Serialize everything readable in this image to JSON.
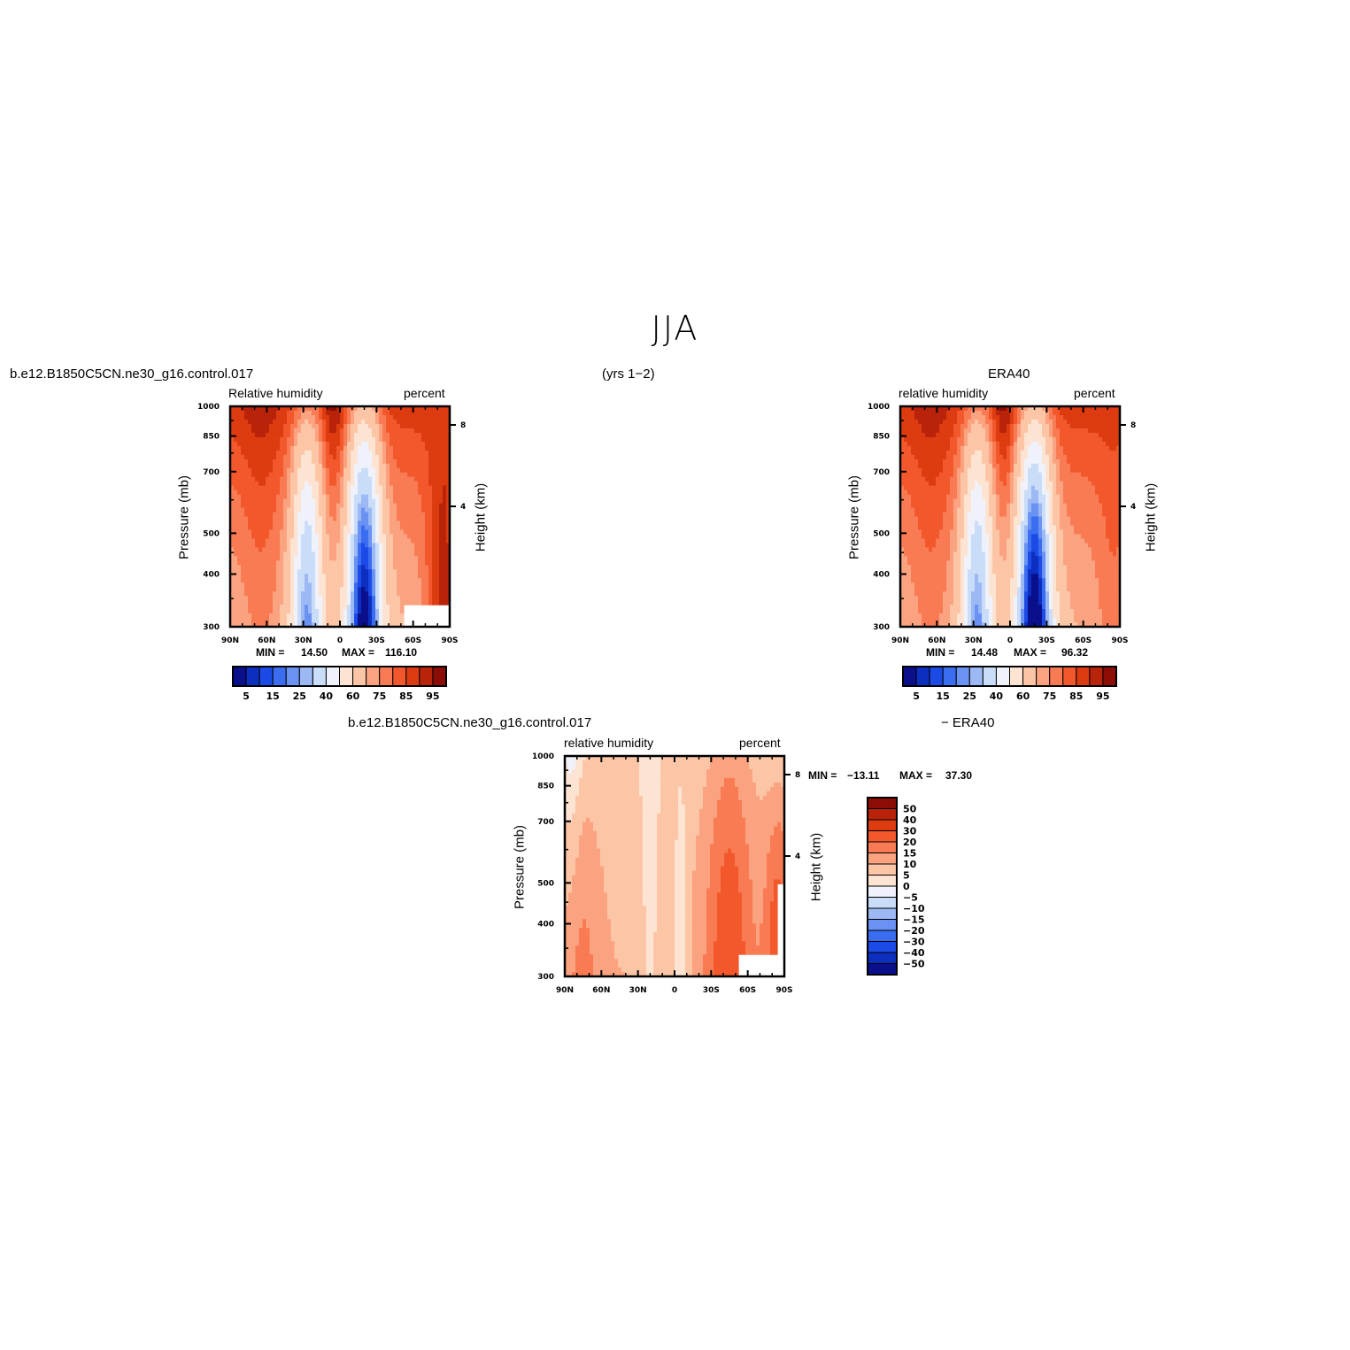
{
  "figure": {
    "title": "JJA",
    "period": "(yrs 1−2)"
  },
  "panels": {
    "model": {
      "case": "b.e12.B1850C5CN.ne30_g16.control.017",
      "left_string": "Relative  humidity",
      "right_string": "percent",
      "min_label": "MIN =",
      "min_value": "14.50",
      "max_label": "MAX =",
      "max_value": "116.10"
    },
    "obs": {
      "case": "ERA40",
      "left_string": "relative  humidity",
      "right_string": "percent",
      "min_label": "MIN =",
      "min_value": "14.48",
      "max_label": "MAX =",
      "max_value": "96.32"
    },
    "diff": {
      "case": "b.e12.B1850C5CN.ne30_g16.control.017",
      "case_suffix": "− ERA40",
      "left_string": "relative  humidity",
      "right_string": "percent",
      "min_label": "MIN =",
      "min_value": "−13.11",
      "max_label": "MAX =",
      "max_value": "37.30"
    }
  },
  "axes": {
    "y_left_title": "Pressure  (mb)",
    "y_right_title": "Height  (km)",
    "pressure_ticks": [
      "300",
      "400",
      "500",
      "700",
      "850",
      "1000"
    ],
    "height_ticks": [
      "8",
      "4"
    ],
    "lat_ticks": [
      "90N",
      "60N",
      "30N",
      "0",
      "30S",
      "60S",
      "90S"
    ]
  },
  "colorbars": {
    "absolute_labels": [
      "5",
      "15",
      "25",
      "40",
      "60",
      "75",
      "85",
      "95"
    ],
    "absolute_colors": [
      "#0a0f8c",
      "#0d2fc0",
      "#1c4ae6",
      "#3a6df0",
      "#6a92f3",
      "#9cb9f5",
      "#c9dcf8",
      "#f0f2fb",
      "#fde3d2",
      "#fcc6a6",
      "#fba380",
      "#f97b53",
      "#f3582c",
      "#dd3b10",
      "#b8230a",
      "#8c0d05"
    ],
    "difference_labels": [
      "50",
      "40",
      "30",
      "20",
      "15",
      "10",
      "5",
      "0",
      "−5",
      "−10",
      "−15",
      "−20",
      "−30",
      "−40",
      "−50"
    ],
    "difference_colors": [
      "#8c0d05",
      "#b8230a",
      "#dd3b10",
      "#f3582c",
      "#f97b53",
      "#fba380",
      "#fcc6a6",
      "#fde3d2",
      "#f0f2fb",
      "#c9dcf8",
      "#9cb9f5",
      "#6a92f3",
      "#3a6df0",
      "#1c4ae6",
      "#0d2fc0",
      "#0a0f8c"
    ]
  },
  "chart_data": [
    {
      "type": "heatmap",
      "panel": "model",
      "x_range": [
        "90N",
        "90S"
      ],
      "y_range_mb": [
        1000,
        300
      ],
      "y_scale": "log-pressure",
      "min": 14.5,
      "max": 116.1,
      "units": "percent"
    },
    {
      "type": "heatmap",
      "panel": "obs",
      "x_range": [
        "90N",
        "90S"
      ],
      "y_range_mb": [
        1000,
        300
      ],
      "y_scale": "log-pressure",
      "min": 14.48,
      "max": 96.32,
      "units": "percent"
    },
    {
      "type": "heatmap",
      "panel": "diff",
      "x_range": [
        "90N",
        "90S"
      ],
      "y_range_mb": [
        1000,
        300
      ],
      "y_scale": "log-pressure",
      "min": -13.11,
      "max": 37.3,
      "units": "percent"
    }
  ]
}
